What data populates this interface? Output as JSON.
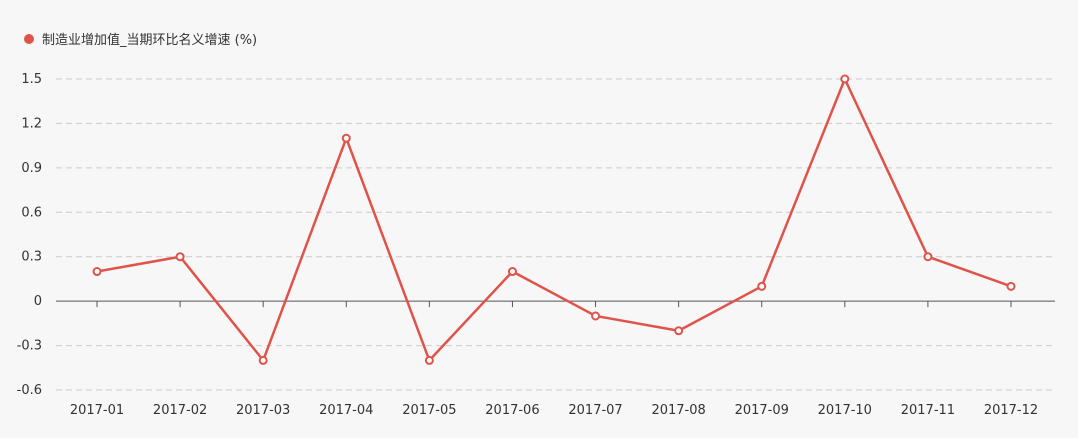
{
  "chart_data": {
    "type": "line",
    "categories": [
      "2017-01",
      "2017-02",
      "2017-03",
      "2017-04",
      "2017-05",
      "2017-06",
      "2017-07",
      "2017-08",
      "2017-09",
      "2017-10",
      "2017-11",
      "2017-12"
    ],
    "series": [
      {
        "name": "制造业增加值_当期环比名义增速 (%)",
        "color": "#e0534a",
        "values": [
          0.2,
          0.3,
          -0.4,
          1.1,
          -0.4,
          0.2,
          -0.1,
          -0.2,
          0.1,
          1.5,
          0.3,
          0.1
        ]
      }
    ],
    "yticks": [
      "-0.6",
      "-0.3",
      "0",
      "0.3",
      "0.6",
      "0.9",
      "1.2",
      "1.5"
    ],
    "ylim": [
      -0.6,
      1.5
    ],
    "grid": true,
    "legend_position": "top-left"
  }
}
